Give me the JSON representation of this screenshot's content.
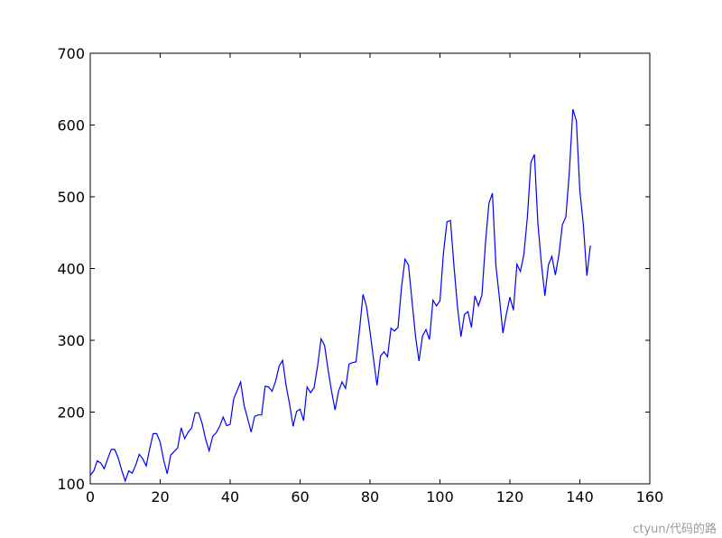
{
  "chart_data": {
    "type": "line",
    "title": "",
    "xlabel": "",
    "ylabel": "",
    "xlim": [
      0,
      160
    ],
    "ylim": [
      100,
      700
    ],
    "xticks": [
      0,
      20,
      40,
      60,
      80,
      100,
      120,
      140,
      160
    ],
    "yticks": [
      100,
      200,
      300,
      400,
      500,
      600,
      700
    ],
    "grid": false,
    "legend": "none",
    "series": [
      {
        "color": "#0000ff",
        "x_start": 0,
        "values": [
          112,
          118,
          132,
          129,
          121,
          135,
          148,
          148,
          136,
          119,
          104,
          118,
          115,
          126,
          141,
          135,
          125,
          149,
          170,
          170,
          158,
          133,
          114,
          140,
          145,
          150,
          178,
          163,
          172,
          178,
          199,
          199,
          184,
          162,
          146,
          166,
          171,
          180,
          193,
          181,
          183,
          218,
          230,
          242,
          209,
          191,
          172,
          194,
          196,
          196,
          236,
          235,
          229,
          243,
          264,
          272,
          237,
          211,
          180,
          201,
          204,
          188,
          235,
          227,
          234,
          264,
          302,
          293,
          259,
          229,
          203,
          229,
          242,
          233,
          267,
          269,
          270,
          315,
          364,
          347,
          312,
          274,
          237,
          278,
          284,
          277,
          317,
          313,
          318,
          374,
          413,
          405,
          355,
          306,
          271,
          306,
          315,
          301,
          356,
          348,
          355,
          422,
          465,
          467,
          404,
          347,
          305,
          336,
          340,
          318,
          362,
          348,
          363,
          435,
          491,
          505,
          404,
          359,
          310,
          337,
          360,
          342,
          406,
          396,
          420,
          472,
          548,
          559,
          463,
          407,
          362,
          405,
          417,
          391,
          419,
          461,
          472,
          535,
          622,
          606,
          508,
          461,
          390,
          432
        ]
      }
    ]
  },
  "watermark": "ctyun/代码的路"
}
